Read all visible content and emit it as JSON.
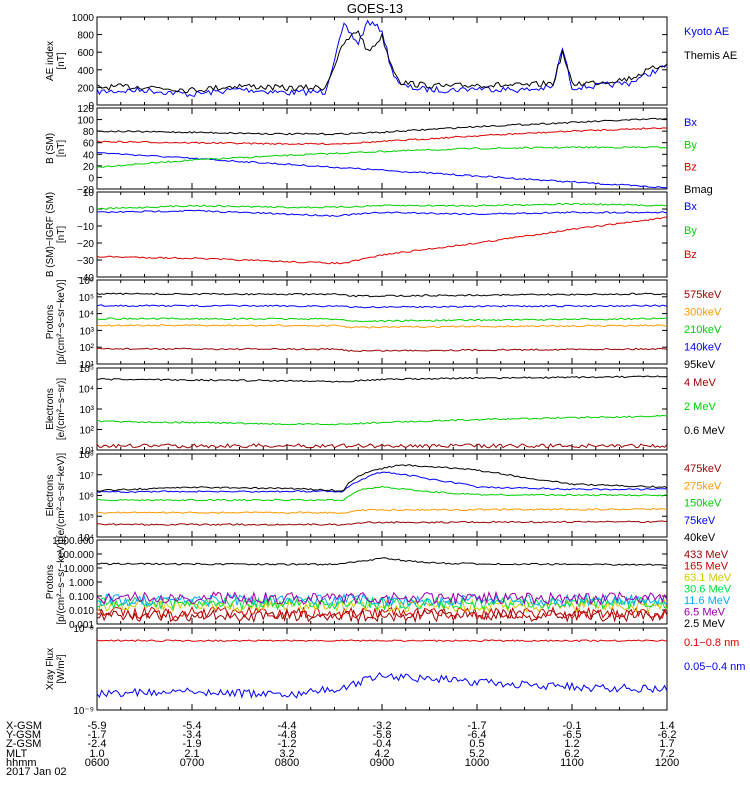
{
  "title": "GOES-13",
  "date": "2017 Jan 02",
  "colors": {
    "black": "#000000",
    "blue": "#0000ff",
    "green": "#00d000",
    "red": "#dd0000",
    "orange": "#ff9900",
    "darkred": "#990000",
    "cyan": "#00aaff",
    "purple": "#9900aa",
    "yellowgreen": "#cccc00",
    "ltgreen": "#00e040",
    "crimson": "#cc0000"
  },
  "ephemeris": {
    "labels": [
      "X-GSM",
      "Y-GSM",
      "Z-GSM",
      "MLT",
      "hhmm"
    ],
    "columns": [
      [
        "-5.9",
        "-1.7",
        "-2.4",
        "1.0",
        "0600"
      ],
      [
        "-5.4",
        "-3.4",
        "-1.9",
        "2.1",
        "0700"
      ],
      [
        "-4.4",
        "-4.8",
        "-1.2",
        "3.2",
        "0800"
      ],
      [
        "-3.2",
        "-5.8",
        "-0.4",
        "4.2",
        "0900"
      ],
      [
        "-1.7",
        "-6.4",
        "0.5",
        "5.2",
        "1000"
      ],
      [
        "-0.1",
        "-6.5",
        "1.2",
        "6.2",
        "1100"
      ],
      [
        "1.4",
        "-6.2",
        "1.7",
        "7.2",
        "1200"
      ]
    ]
  },
  "chart_data": [
    {
      "type": "line",
      "ylabel": [
        "AE index",
        "[nT]"
      ],
      "scale": "linear",
      "ylim": [
        0,
        1000
      ],
      "ticks": [
        0,
        200,
        400,
        600,
        800,
        1000
      ],
      "tick_labels": [
        "0",
        "200",
        "400",
        "600",
        "800",
        "1000"
      ],
      "series": [
        {
          "name": "Kyoto AE",
          "color": "#0000ff",
          "x": [
            6.0,
            6.5,
            7.0,
            7.5,
            8.0,
            8.4,
            8.6,
            8.75,
            8.85,
            9.0,
            9.1,
            9.2,
            9.4,
            9.7,
            10.0,
            10.5,
            10.8,
            10.9,
            11.0,
            11.3,
            11.6,
            12.0
          ],
          "y": [
            150,
            170,
            120,
            180,
            140,
            150,
            900,
            700,
            950,
            850,
            400,
            220,
            180,
            170,
            190,
            170,
            200,
            650,
            200,
            220,
            250,
            450
          ]
        },
        {
          "name": "Themis AE",
          "color": "#000000",
          "x": [
            6.0,
            6.5,
            7.0,
            7.5,
            8.0,
            8.4,
            8.6,
            8.75,
            8.85,
            9.0,
            9.1,
            9.2,
            9.4,
            9.7,
            10.0,
            10.5,
            10.8,
            10.9,
            11.0,
            11.3,
            11.6,
            12.0
          ],
          "y": [
            200,
            210,
            170,
            220,
            190,
            200,
            700,
            850,
            600,
            780,
            450,
            260,
            230,
            210,
            230,
            220,
            250,
            600,
            240,
            260,
            300,
            480
          ]
        }
      ]
    },
    {
      "type": "line",
      "ylabel": [
        "B (SM)",
        "[nT]"
      ],
      "scale": "linear",
      "ylim": [
        -20,
        120
      ],
      "ticks": [
        -20,
        0,
        20,
        40,
        60,
        80,
        100,
        120
      ],
      "tick_labels": [
        "−20",
        "0",
        "20",
        "40",
        "60",
        "80",
        "100",
        "120"
      ],
      "series": [
        {
          "name": "Bx",
          "color": "#0000ff",
          "x": [
            6,
            12
          ],
          "y": [
            43,
            -18
          ]
        },
        {
          "name": "By",
          "color": "#00d000",
          "x": [
            6,
            7,
            8,
            9,
            10,
            11,
            12
          ],
          "y": [
            18,
            30,
            38,
            45,
            50,
            52,
            52
          ]
        },
        {
          "name": "Bz",
          "color": "#dd0000",
          "x": [
            6,
            7,
            8,
            8.5,
            9,
            10,
            11,
            12
          ],
          "y": [
            62,
            60,
            58,
            58,
            62,
            72,
            80,
            86
          ]
        },
        {
          "name": "Bmag",
          "color": "#000000",
          "x": [
            6,
            7,
            8,
            8.5,
            9,
            10,
            11,
            12
          ],
          "y": [
            80,
            78,
            75,
            75,
            78,
            88,
            95,
            102
          ]
        }
      ]
    },
    {
      "type": "line",
      "ylabel": [
        "B (SM)−IGRF (SM)",
        "[nT]"
      ],
      "scale": "linear",
      "ylim": [
        -40,
        10
      ],
      "ticks": [
        -40,
        -30,
        -20,
        -10,
        0,
        10
      ],
      "tick_labels": [
        "−40",
        "−30",
        "−20",
        "−10",
        "0",
        "10"
      ],
      "series": [
        {
          "name": "Bx",
          "color": "#0000ff",
          "x": [
            6,
            7,
            8,
            8.5,
            9,
            10,
            11,
            12
          ],
          "y": [
            -2,
            -1,
            -3,
            -4,
            -2,
            -3,
            -2,
            -2
          ]
        },
        {
          "name": "By",
          "color": "#00d000",
          "x": [
            6,
            7,
            8,
            8.5,
            9,
            10,
            11,
            12
          ],
          "y": [
            0,
            2,
            1,
            1,
            2,
            2,
            3,
            2
          ]
        },
        {
          "name": "Bz",
          "color": "#dd0000",
          "x": [
            6,
            7,
            8,
            8.6,
            9,
            10,
            11,
            12
          ],
          "y": [
            -28,
            -29,
            -31,
            -32,
            -27,
            -20,
            -12,
            -5
          ]
        }
      ]
    },
    {
      "type": "line",
      "ylabel": [
        "Protons",
        "[p/(cm²−s−sr−keV)]"
      ],
      "scale": "log",
      "ylim": [
        10,
        1000000
      ],
      "ticks": [
        10,
        100,
        1000,
        10000,
        100000,
        1000000
      ],
      "tick_labels": [
        "10¹",
        "10²",
        "10³",
        "10⁴",
        "10⁵",
        "10⁶"
      ],
      "series": [
        {
          "name": "575keV",
          "color": "#990000",
          "x": [
            6,
            8.5,
            8.7,
            12
          ],
          "y": [
            80,
            75,
            60,
            80
          ]
        },
        {
          "name": "300keV",
          "color": "#ff9900",
          "x": [
            6,
            8.5,
            8.7,
            12
          ],
          "y": [
            2000,
            1900,
            1500,
            2000
          ]
        },
        {
          "name": "210keV",
          "color": "#00d000",
          "x": [
            6,
            8.5,
            8.7,
            12
          ],
          "y": [
            5000,
            4800,
            3500,
            5000
          ]
        },
        {
          "name": "140keV",
          "color": "#0000ff",
          "x": [
            6,
            8.5,
            8.7,
            12
          ],
          "y": [
            30000,
            28000,
            24000,
            30000
          ]
        },
        {
          "name": "95keV",
          "color": "#000000",
          "x": [
            6,
            8.5,
            8.7,
            12
          ],
          "y": [
            150000,
            140000,
            110000,
            150000
          ]
        }
      ]
    },
    {
      "type": "line",
      "ylabel": [
        "Electrons",
        "[e/(cm²−s−sr)]"
      ],
      "scale": "log",
      "ylim": [
        10,
        100000
      ],
      "ticks": [
        10,
        100,
        1000,
        10000,
        100000
      ],
      "tick_labels": [
        "10¹",
        "10²",
        "10³",
        "10⁴",
        "10⁵"
      ],
      "series": [
        {
          "name": "4 MeV",
          "color": "#990000",
          "x": [
            6,
            12
          ],
          "y": [
            16,
            16
          ]
        },
        {
          "name": "2 MeV",
          "color": "#00d000",
          "x": [
            6,
            7,
            8,
            8.6,
            9,
            10,
            11,
            12
          ],
          "y": [
            250,
            220,
            180,
            180,
            220,
            300,
            380,
            450
          ]
        },
        {
          "name": "0.6 MeV",
          "color": "#000000",
          "x": [
            6,
            7,
            8,
            8.6,
            9,
            10,
            11,
            12
          ],
          "y": [
            28000,
            26000,
            24000,
            22000,
            28000,
            32000,
            35000,
            38000
          ]
        }
      ]
    },
    {
      "type": "line",
      "ylabel": [
        "Electrons",
        "[e/(cm²−s−sr−keV)]"
      ],
      "scale": "log",
      "ylim": [
        10000,
        100000000
      ],
      "ticks": [
        10000,
        100000,
        1000000,
        10000000,
        100000000
      ],
      "tick_labels": [
        "10⁴",
        "10⁵",
        "10⁶",
        "10⁷",
        "10⁸"
      ],
      "series": [
        {
          "name": "475keV",
          "color": "#990000",
          "x": [
            6,
            8.6,
            8.8,
            12
          ],
          "y": [
            40000,
            40000,
            50000,
            55000
          ]
        },
        {
          "name": "275keV",
          "color": "#ff9900",
          "x": [
            6,
            8.6,
            8.8,
            12
          ],
          "y": [
            150000,
            150000,
            200000,
            220000
          ]
        },
        {
          "name": "150keV",
          "color": "#00d000",
          "x": [
            6,
            8.6,
            8.8,
            9.0,
            9.5,
            10,
            12
          ],
          "y": [
            600000,
            600000,
            2000000,
            2500000,
            1500000,
            1100000,
            1000000
          ]
        },
        {
          "name": "75keV",
          "color": "#0000ff",
          "x": [
            6,
            8.6,
            8.8,
            9.0,
            9.5,
            10,
            11,
            12
          ],
          "y": [
            1500000,
            1600000,
            6000000,
            14000000,
            6000000,
            2500000,
            2000000,
            2000000
          ]
        },
        {
          "name": "40keV",
          "color": "#000000",
          "x": [
            6,
            7,
            8,
            8.6,
            8.9,
            9.2,
            9.8,
            10.5,
            11,
            12
          ],
          "y": [
            1700000,
            2500000,
            2200000,
            1700000,
            15000000,
            30000000,
            20000000,
            7000000,
            3500000,
            2500000
          ]
        }
      ]
    },
    {
      "type": "line",
      "ylabel": [
        "Protons",
        "[p/(cm²−s−sr−keV)]"
      ],
      "scale": "log",
      "ylim": [
        0.001,
        1000
      ],
      "ticks": [
        0.001,
        0.01,
        0.1,
        1,
        10,
        100,
        1000
      ],
      "tick_labels": [
        "0.001",
        "0.010",
        "0.100",
        "1.000",
        "10.000",
        "100.000",
        "1000.000"
      ],
      "series": [
        {
          "name": "433 MeV",
          "color": "#990000",
          "x": [
            6,
            12
          ],
          "y": [
            0.004,
            0.004
          ]
        },
        {
          "name": "165 MeV",
          "color": "#cc0000",
          "x": [
            6,
            12
          ],
          "y": [
            0.006,
            0.006
          ]
        },
        {
          "name": "63.1 MeV",
          "color": "#cccc00",
          "x": [
            6,
            12
          ],
          "y": [
            0.02,
            0.02
          ]
        },
        {
          "name": "30.6 MeV",
          "color": "#00e040",
          "x": [
            6,
            12
          ],
          "y": [
            0.03,
            0.03
          ]
        },
        {
          "name": "11.6 MeV",
          "color": "#00aaff",
          "x": [
            6,
            12
          ],
          "y": [
            0.05,
            0.05
          ]
        },
        {
          "name": "6.5 MeV",
          "color": "#9900aa",
          "x": [
            6,
            12
          ],
          "y": [
            0.07,
            0.07
          ]
        },
        {
          "name": "2.5 MeV",
          "color": "#000000",
          "x": [
            6,
            8.5,
            8.8,
            9.0,
            9.3,
            9.6,
            10,
            11,
            12
          ],
          "y": [
            20,
            18,
            30,
            50,
            30,
            22,
            20,
            18,
            17
          ]
        }
      ]
    },
    {
      "type": "line",
      "ylabel": [
        "Xray Flux",
        "[W/m²]"
      ],
      "scale": "log",
      "ylim": [
        1e-09,
        1e-08
      ],
      "ticks": [
        1e-09,
        1e-08
      ],
      "tick_labels": [
        "10⁻⁹",
        "10⁻⁸"
      ],
      "series": [
        {
          "name": "0.1−0.8 nm",
          "color": "#dd0000",
          "x": [
            6,
            12
          ],
          "y": [
            7e-09,
            7e-09
          ]
        },
        {
          "name": "0.05−0.4 nm",
          "color": "#0000ff",
          "x": [
            6,
            7,
            8,
            8.6,
            9,
            10,
            11,
            12
          ],
          "y": [
            1.6e-09,
            1.7e-09,
            1.5e-09,
            1.9e-09,
            2.6e-09,
            2.2e-09,
            1.9e-09,
            1.8e-09
          ]
        }
      ]
    }
  ]
}
